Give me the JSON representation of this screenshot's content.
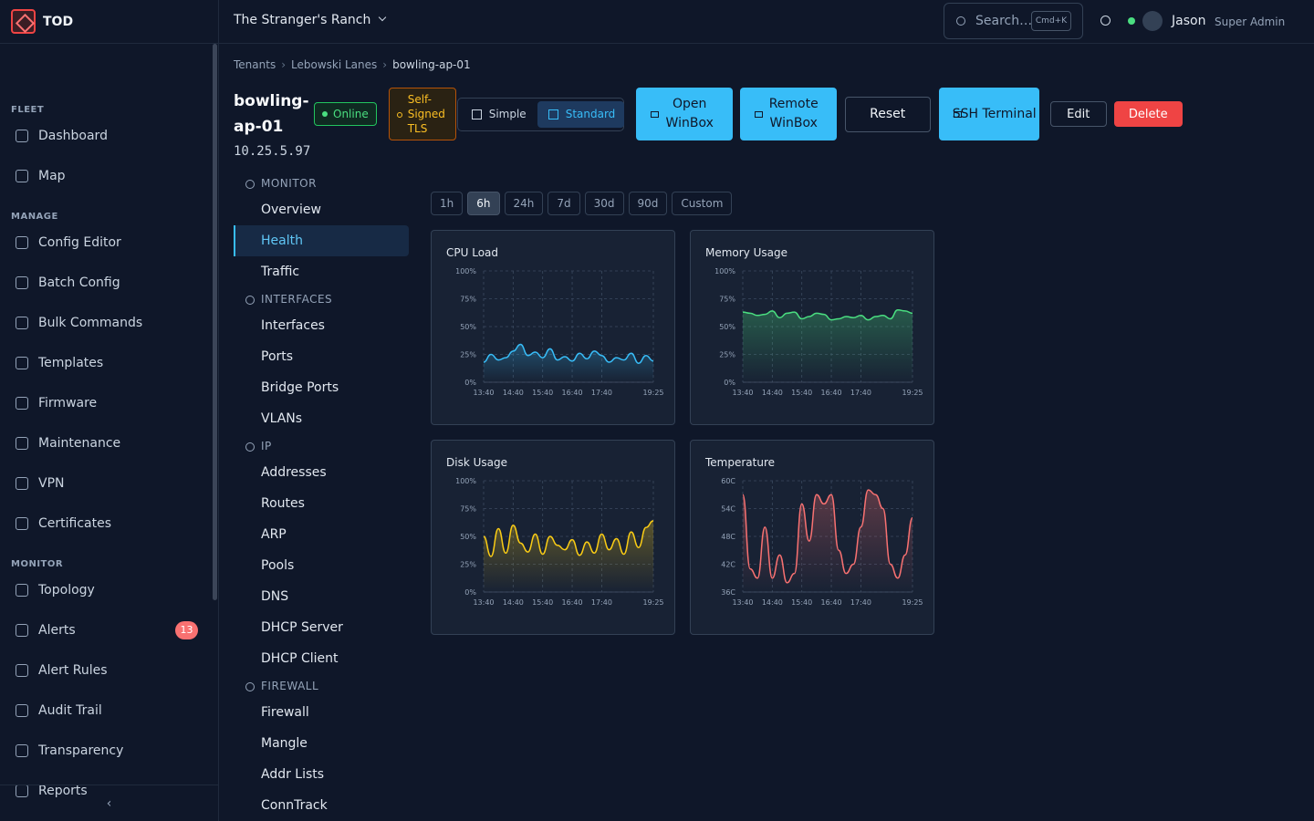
{
  "brand": "TOD",
  "header": {
    "tenant": "The Stranger's Ranch",
    "search": "Search…",
    "shortcut": "Cmd+K",
    "user": "Jason",
    "role": "Super Admin"
  },
  "sidebar": [
    {
      "title": "FLEET",
      "items": [
        {
          "label": "Dashboard"
        },
        {
          "label": "Map"
        }
      ]
    },
    {
      "title": "MANAGE",
      "items": [
        {
          "label": "Config Editor"
        },
        {
          "label": "Batch Config"
        },
        {
          "label": "Bulk Commands"
        },
        {
          "label": "Templates"
        },
        {
          "label": "Firmware"
        },
        {
          "label": "Maintenance"
        },
        {
          "label": "VPN"
        },
        {
          "label": "Certificates"
        }
      ]
    },
    {
      "title": "MONITOR",
      "items": [
        {
          "label": "Topology"
        },
        {
          "label": "Alerts",
          "badge": 13
        },
        {
          "label": "Alert Rules"
        },
        {
          "label": "Audit Trail"
        },
        {
          "label": "Transparency"
        },
        {
          "label": "Reports"
        }
      ]
    }
  ],
  "breadcrumb": [
    "Tenants",
    "Lebowski Lanes",
    "bowling-ap-01"
  ],
  "device": {
    "name": "bowling-ap-01",
    "status": "Online",
    "tls": "Self-Signed TLS",
    "ip": "10.25.5.97"
  },
  "view_modes": [
    "Simple",
    "Standard"
  ],
  "actions": [
    "Open WinBox",
    "Remote WinBox",
    "Reset",
    "SSH Terminal",
    "Edit",
    "Delete"
  ],
  "subnav": [
    {
      "title": "MONITOR",
      "items": [
        "Overview",
        "Health",
        "Traffic"
      ]
    },
    {
      "title": "INTERFACES",
      "items": [
        "Interfaces",
        "Ports",
        "Bridge Ports",
        "VLANs"
      ]
    },
    {
      "title": "IP",
      "items": [
        "Addresses",
        "Routes",
        "ARP",
        "Pools",
        "DNS",
        "DHCP Server",
        "DHCP Client"
      ]
    },
    {
      "title": "FIREWALL",
      "items": [
        "Firewall",
        "Mangle",
        "Addr Lists",
        "ConnTrack"
      ]
    }
  ],
  "ranges": [
    "1h",
    "6h",
    "24h",
    "7d",
    "30d",
    "90d",
    "Custom"
  ],
  "chart_data": [
    {
      "type": "line",
      "title": "CPU Load",
      "color": "#38bdf8",
      "categories": [
        "13:40",
        null,
        null,
        null,
        "14:40",
        null,
        null,
        null,
        "15:40",
        null,
        null,
        null,
        "16:40",
        null,
        null,
        null,
        "17:40",
        null,
        null,
        null,
        null,
        null,
        null,
        "19:25"
      ],
      "values": [
        18,
        25,
        20,
        22,
        28,
        34,
        24,
        27,
        22,
        30,
        20,
        23,
        19,
        26,
        21,
        28,
        24,
        18,
        22,
        20,
        26,
        17,
        24,
        19
      ],
      "ylim": [
        0,
        100
      ],
      "yticks": [
        {
          "value": 0,
          "label": "0%"
        },
        {
          "value": 25,
          "label": "25%"
        },
        {
          "value": 50,
          "label": "50%"
        },
        {
          "value": 75,
          "label": "75%"
        },
        {
          "value": 100,
          "label": "100%"
        }
      ],
      "grid": true
    },
    {
      "type": "line",
      "title": "Memory Usage",
      "color": "#4ade80",
      "categories": [
        "13:40",
        null,
        null,
        null,
        "14:40",
        null,
        null,
        null,
        "15:40",
        null,
        null,
        null,
        "16:40",
        null,
        null,
        null,
        "17:40",
        null,
        null,
        null,
        null,
        null,
        null,
        "19:25"
      ],
      "values": [
        63,
        62,
        60,
        61,
        64,
        58,
        62,
        63,
        57,
        59,
        62,
        61,
        56,
        57,
        59,
        58,
        60,
        56,
        59,
        60,
        57,
        65,
        64,
        62
      ],
      "ylim": [
        0,
        100
      ],
      "yticks": [
        {
          "value": 0,
          "label": "0%"
        },
        {
          "value": 25,
          "label": "25%"
        },
        {
          "value": 50,
          "label": "50%"
        },
        {
          "value": 75,
          "label": "75%"
        },
        {
          "value": 100,
          "label": "100%"
        }
      ],
      "grid": true
    },
    {
      "type": "line",
      "title": "Disk Usage",
      "color": "#facc15",
      "categories": [
        "13:40",
        null,
        null,
        null,
        "14:40",
        null,
        null,
        null,
        "15:40",
        null,
        null,
        null,
        "16:40",
        null,
        null,
        null,
        "17:40",
        null,
        null,
        null,
        null,
        null,
        null,
        "19:25"
      ],
      "values": [
        50,
        32,
        57,
        35,
        60,
        44,
        36,
        52,
        34,
        50,
        42,
        38,
        47,
        33,
        45,
        35,
        52,
        38,
        48,
        34,
        54,
        40,
        58,
        64
      ],
      "ylim": [
        0,
        100
      ],
      "yticks": [
        {
          "value": 0,
          "label": "0%"
        },
        {
          "value": 25,
          "label": "25%"
        },
        {
          "value": 50,
          "label": "50%"
        },
        {
          "value": 75,
          "label": "75%"
        },
        {
          "value": 100,
          "label": "100%"
        }
      ],
      "grid": true
    },
    {
      "type": "line",
      "title": "Temperature",
      "color": "#f87171",
      "categories": [
        "13:40",
        null,
        null,
        null,
        "14:40",
        null,
        null,
        null,
        "15:40",
        null,
        null,
        null,
        "16:40",
        null,
        null,
        null,
        "17:40",
        null,
        null,
        null,
        null,
        null,
        null,
        "19:25"
      ],
      "values": [
        57,
        41,
        39,
        50,
        39,
        44,
        38,
        40,
        55,
        47,
        57,
        55,
        57,
        45,
        40,
        42,
        50,
        58,
        57,
        54,
        42,
        39,
        44,
        52
      ],
      "ylim": [
        36,
        60
      ],
      "yticks": [
        {
          "value": 36,
          "label": "36C"
        },
        {
          "value": 42,
          "label": "42C"
        },
        {
          "value": 48,
          "label": "48C"
        },
        {
          "value": 54,
          "label": "54C"
        },
        {
          "value": 60,
          "label": "60C"
        }
      ],
      "grid": true
    }
  ]
}
